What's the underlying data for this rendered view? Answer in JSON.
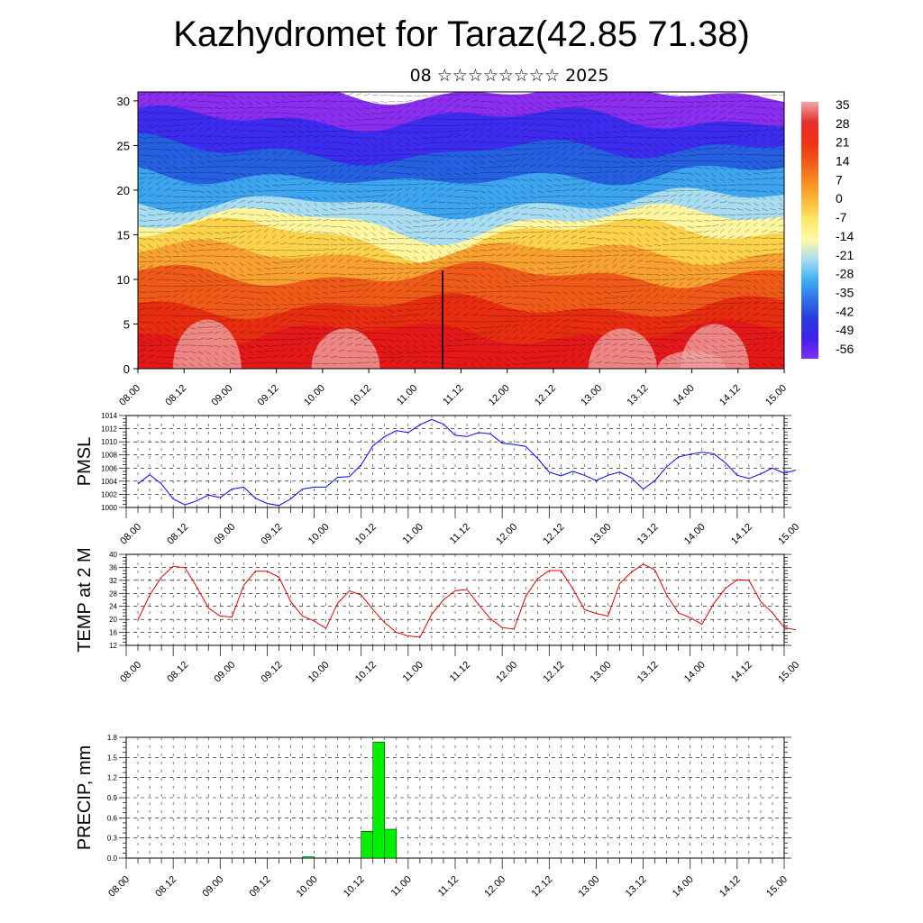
{
  "title": "Kazhydromet for Taraz(42.85 71.38)",
  "subtitle": "08 ☆☆☆☆☆☆☆☆ 2025",
  "time_ticks": [
    "08.00",
    "08.12",
    "09.00",
    "09.12",
    "10.00",
    "10.12",
    "11.00",
    "11.12",
    "12.00",
    "12.12",
    "13.00",
    "13.12",
    "14.00",
    "14.12",
    "15.00"
  ],
  "chart_data": [
    {
      "type": "heatmap",
      "name": "cross-section",
      "ylim": [
        0,
        31
      ],
      "yticks": [
        0,
        5,
        10,
        15,
        20,
        25,
        30
      ],
      "colorbar": {
        "labels": [
          "35",
          "28",
          "21",
          "14",
          "7",
          "0",
          "-7",
          "-14",
          "-21",
          "-28",
          "-35",
          "-42",
          "-49",
          "-56"
        ],
        "colors": [
          "#f0a8a8",
          "#e83030",
          "#f03018",
          "#f05818",
          "#f88a20",
          "#fbbb3a",
          "#fde86a",
          "#fffaa8",
          "#a8dcf0",
          "#40b0f0",
          "#3070e8",
          "#2a3ae0",
          "#4020f0",
          "#8030f0"
        ]
      },
      "layers": [
        {
          "top": 31,
          "color": "#8a2ef0"
        },
        {
          "top": 28,
          "color": "#3c2cf0"
        },
        {
          "top": 25,
          "color": "#2460e0"
        },
        {
          "top": 22,
          "color": "#3da4f0"
        },
        {
          "top": 19,
          "color": "#a8dcf0"
        },
        {
          "top": 17,
          "color": "#fff7a0"
        },
        {
          "top": 15.5,
          "color": "#fcd24a"
        },
        {
          "top": 13,
          "color": "#f8a030"
        },
        {
          "top": 10.5,
          "color": "#f05a18"
        },
        {
          "top": 7,
          "color": "#e82c10"
        },
        {
          "top": 4,
          "color": "#e41818"
        }
      ],
      "warm_domes": [
        {
          "t": 0.75,
          "h": 5.5
        },
        {
          "t": 2.25,
          "h": 4.5
        },
        {
          "t": 5.25,
          "h": 4.5
        },
        {
          "t": 6.25,
          "h": 5.0
        },
        {
          "t": 6.0,
          "h": 2.0
        }
      ]
    },
    {
      "type": "line",
      "ylabel": "PMSL",
      "ylim": [
        1000,
        1014
      ],
      "yticks": [
        1000,
        1002,
        1004,
        1006,
        1008,
        1010,
        1012,
        1014
      ],
      "color": "#0000ff",
      "x_start": 0,
      "x_step": 0.125,
      "values": [
        1003.6,
        1005.0,
        1003.6,
        1001.3,
        1000.4,
        1001.0,
        1001.9,
        1001.5,
        1002.8,
        1003.1,
        1001.4,
        1000.6,
        1000.3,
        1001.3,
        1002.8,
        1003.1,
        1003.1,
        1004.6,
        1004.7,
        1006.5,
        1009.4,
        1010.8,
        1011.7,
        1011.4,
        1012.6,
        1013.4,
        1012.7,
        1011.0,
        1010.8,
        1011.4,
        1011.2,
        1009.8,
        1009.6,
        1009.3,
        1007.5,
        1005.4,
        1004.8,
        1005.5,
        1004.9,
        1004.1,
        1004.9,
        1005.4,
        1004.5,
        1002.8,
        1004.1,
        1006.2,
        1007.7,
        1008.1,
        1008.4,
        1008.2,
        1006.8,
        1004.9,
        1004.4,
        1005.1,
        1006.0,
        1005.2,
        1005.7
      ]
    },
    {
      "type": "line",
      "ylabel": "TEMP at 2 M",
      "ylim": [
        12,
        40
      ],
      "yticks": [
        12,
        16,
        20,
        24,
        28,
        32,
        36,
        40
      ],
      "color": "#e00000",
      "x_start": 0,
      "x_step": 0.125,
      "values": [
        19.8,
        27.5,
        33.0,
        36.3,
        35.9,
        30.0,
        23.5,
        21.0,
        20.7,
        30.5,
        34.8,
        34.8,
        33.0,
        25.5,
        21.0,
        19.5,
        17.2,
        25.0,
        28.8,
        27.5,
        23.0,
        19.0,
        16.0,
        14.9,
        14.5,
        21.5,
        26.0,
        28.8,
        29.2,
        24.5,
        20.2,
        17.5,
        17.0,
        27.0,
        32.5,
        35.0,
        35.0,
        29.5,
        23.0,
        21.8,
        21.0,
        31.0,
        34.5,
        37.0,
        35.2,
        27.5,
        22.0,
        20.5,
        18.5,
        24.8,
        29.5,
        32.2,
        32.0,
        25.5,
        22.0,
        17.5,
        16.8
      ]
    },
    {
      "type": "bar",
      "ylabel": "PRECIP, mm",
      "ylim": [
        0,
        1.8
      ],
      "yticks": [
        "0.0",
        "0.3",
        "0.6",
        "0.9",
        "1.2",
        "1.5",
        "1.8"
      ],
      "color": "#00ee00",
      "x_step": 0.125,
      "bars": [
        {
          "t": 1.875,
          "value": 0.02
        },
        {
          "t": 2.5,
          "value": 0.4
        },
        {
          "t": 2.625,
          "value": 1.73
        },
        {
          "t": 2.75,
          "value": 0.43
        }
      ]
    }
  ]
}
